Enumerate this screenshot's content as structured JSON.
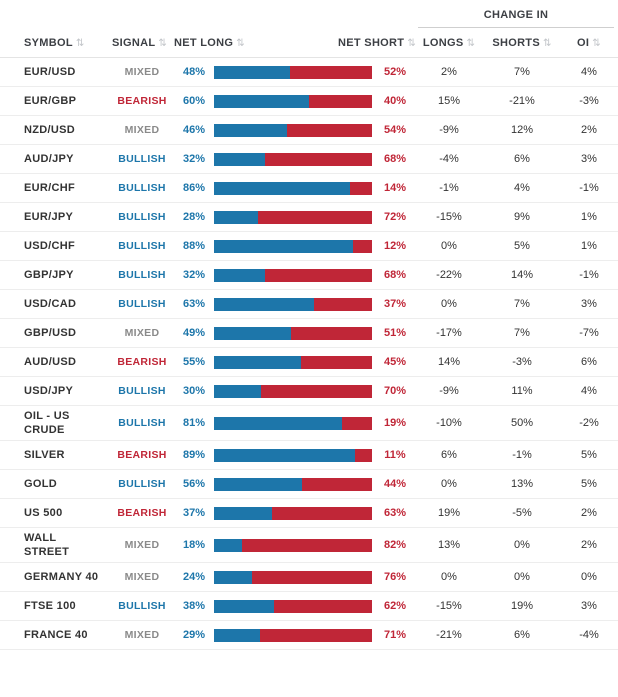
{
  "header": {
    "change_in_label": "CHANGE IN",
    "columns": {
      "symbol": "SYMBOL",
      "signal": "SIGNAL",
      "net_long": "NET LONG",
      "net_short": "NET SHORT",
      "longs": "LONGS",
      "shorts": "SHORTS",
      "oi": "OI"
    }
  },
  "sort_icon": "⇅",
  "colors": {
    "long_blue": "#1d76aa",
    "short_red": "#c02637",
    "mixed_gray": "#8a8a8a"
  },
  "rows": [
    {
      "symbol": "EUR/USD",
      "signal": "MIXED",
      "net_long": 48,
      "net_short": 52,
      "change_longs": "2%",
      "change_shorts": "7%",
      "change_oi": "4%"
    },
    {
      "symbol": "EUR/GBP",
      "signal": "BEARISH",
      "net_long": 60,
      "net_short": 40,
      "change_longs": "15%",
      "change_shorts": "-21%",
      "change_oi": "-3%"
    },
    {
      "symbol": "NZD/USD",
      "signal": "MIXED",
      "net_long": 46,
      "net_short": 54,
      "change_longs": "-9%",
      "change_shorts": "12%",
      "change_oi": "2%"
    },
    {
      "symbol": "AUD/JPY",
      "signal": "BULLISH",
      "net_long": 32,
      "net_short": 68,
      "change_longs": "-4%",
      "change_shorts": "6%",
      "change_oi": "3%"
    },
    {
      "symbol": "EUR/CHF",
      "signal": "BULLISH",
      "net_long": 86,
      "net_short": 14,
      "change_longs": "-1%",
      "change_shorts": "4%",
      "change_oi": "-1%"
    },
    {
      "symbol": "EUR/JPY",
      "signal": "BULLISH",
      "net_long": 28,
      "net_short": 72,
      "change_longs": "-15%",
      "change_shorts": "9%",
      "change_oi": "1%"
    },
    {
      "symbol": "USD/CHF",
      "signal": "BULLISH",
      "net_long": 88,
      "net_short": 12,
      "change_longs": "0%",
      "change_shorts": "5%",
      "change_oi": "1%"
    },
    {
      "symbol": "GBP/JPY",
      "signal": "BULLISH",
      "net_long": 32,
      "net_short": 68,
      "change_longs": "-22%",
      "change_shorts": "14%",
      "change_oi": "-1%"
    },
    {
      "symbol": "USD/CAD",
      "signal": "BULLISH",
      "net_long": 63,
      "net_short": 37,
      "change_longs": "0%",
      "change_shorts": "7%",
      "change_oi": "3%"
    },
    {
      "symbol": "GBP/USD",
      "signal": "MIXED",
      "net_long": 49,
      "net_short": 51,
      "change_longs": "-17%",
      "change_shorts": "7%",
      "change_oi": "-7%"
    },
    {
      "symbol": "AUD/USD",
      "signal": "BEARISH",
      "net_long": 55,
      "net_short": 45,
      "change_longs": "14%",
      "change_shorts": "-3%",
      "change_oi": "6%"
    },
    {
      "symbol": "USD/JPY",
      "signal": "BULLISH",
      "net_long": 30,
      "net_short": 70,
      "change_longs": "-9%",
      "change_shorts": "11%",
      "change_oi": "4%"
    },
    {
      "symbol": "OIL - US CRUDE",
      "signal": "BULLISH",
      "net_long": 81,
      "net_short": 19,
      "change_longs": "-10%",
      "change_shorts": "50%",
      "change_oi": "-2%"
    },
    {
      "symbol": "SILVER",
      "signal": "BEARISH",
      "net_long": 89,
      "net_short": 11,
      "change_longs": "6%",
      "change_shorts": "-1%",
      "change_oi": "5%"
    },
    {
      "symbol": "GOLD",
      "signal": "BULLISH",
      "net_long": 56,
      "net_short": 44,
      "change_longs": "0%",
      "change_shorts": "13%",
      "change_oi": "5%"
    },
    {
      "symbol": "US 500",
      "signal": "BEARISH",
      "net_long": 37,
      "net_short": 63,
      "change_longs": "19%",
      "change_shorts": "-5%",
      "change_oi": "2%"
    },
    {
      "symbol": "WALL STREET",
      "signal": "MIXED",
      "net_long": 18,
      "net_short": 82,
      "change_longs": "13%",
      "change_shorts": "0%",
      "change_oi": "2%"
    },
    {
      "symbol": "GERMANY 40",
      "signal": "MIXED",
      "net_long": 24,
      "net_short": 76,
      "change_longs": "0%",
      "change_shorts": "0%",
      "change_oi": "0%"
    },
    {
      "symbol": "FTSE 100",
      "signal": "BULLISH",
      "net_long": 38,
      "net_short": 62,
      "change_longs": "-15%",
      "change_shorts": "19%",
      "change_oi": "3%"
    },
    {
      "symbol": "FRANCE 40",
      "signal": "MIXED",
      "net_long": 29,
      "net_short": 71,
      "change_longs": "-21%",
      "change_shorts": "6%",
      "change_oi": "-4%"
    }
  ]
}
